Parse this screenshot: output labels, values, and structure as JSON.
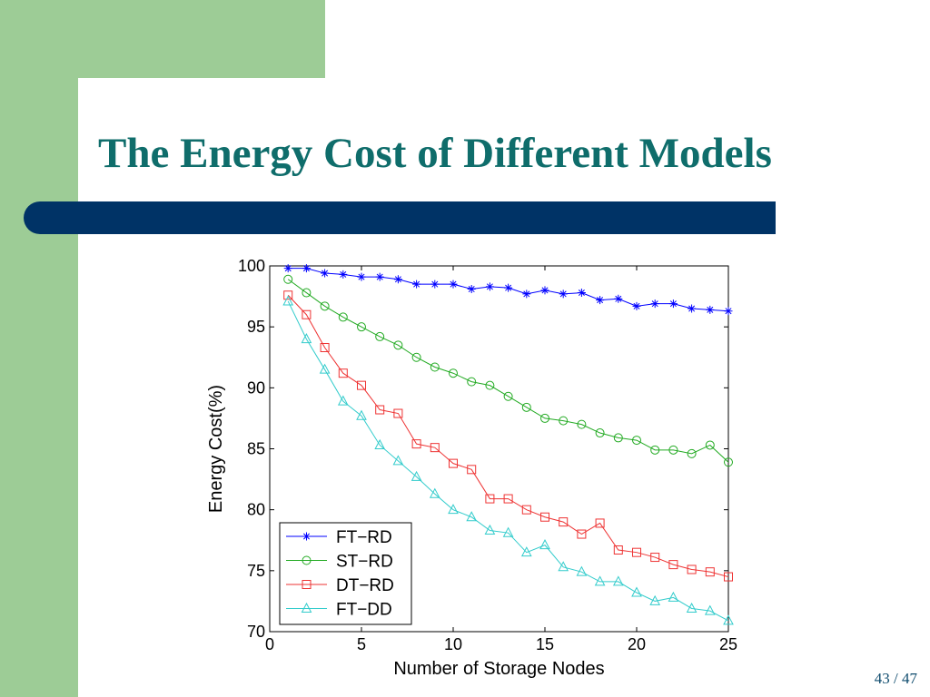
{
  "slide": {
    "title": "The Energy Cost of Different Models",
    "page_current": "43",
    "page_total": "47",
    "page_label": "43 / 47"
  },
  "colors": {
    "title": "#0f6d6b",
    "bar": "#003366",
    "sidebar": "#9dcc96"
  },
  "chart_data": {
    "type": "line",
    "xlabel": "Number of Storage Nodes",
    "ylabel": "Energy Cost(%)",
    "xlim": [
      0,
      25
    ],
    "ylim": [
      70,
      100
    ],
    "xticks": [
      0,
      5,
      10,
      15,
      20,
      25
    ],
    "yticks": [
      70,
      75,
      80,
      85,
      90,
      95,
      100
    ],
    "grid": false,
    "legend_position": "bottom-left",
    "x": [
      1,
      2,
      3,
      4,
      5,
      6,
      7,
      8,
      9,
      10,
      11,
      12,
      13,
      14,
      15,
      16,
      17,
      18,
      19,
      20,
      21,
      22,
      23,
      24,
      25
    ],
    "series": [
      {
        "name": "FT−RD",
        "color": "#0000ff",
        "marker": "star",
        "values": [
          99.8,
          99.8,
          99.4,
          99.3,
          99.1,
          99.1,
          98.9,
          98.5,
          98.5,
          98.5,
          98.1,
          98.3,
          98.2,
          97.7,
          98.0,
          97.7,
          97.8,
          97.2,
          97.3,
          96.7,
          96.9,
          96.9,
          96.5,
          96.4,
          96.3
        ]
      },
      {
        "name": "ST−RD",
        "color": "#22aa22",
        "marker": "circle",
        "values": [
          98.9,
          97.8,
          96.7,
          95.8,
          95.0,
          94.2,
          93.5,
          92.5,
          91.7,
          91.2,
          90.5,
          90.2,
          89.3,
          88.4,
          87.5,
          87.3,
          87.0,
          86.3,
          85.9,
          85.7,
          84.9,
          84.9,
          84.6,
          85.3,
          83.9
        ]
      },
      {
        "name": "DT−RD",
        "color": "#ee3333",
        "marker": "square",
        "values": [
          97.6,
          96.0,
          93.3,
          91.2,
          90.2,
          88.2,
          87.9,
          85.4,
          85.1,
          83.8,
          83.3,
          80.9,
          80.9,
          80.0,
          79.4,
          79.0,
          78.0,
          78.9,
          76.7,
          76.5,
          76.1,
          75.5,
          75.1,
          74.9,
          74.5
        ]
      },
      {
        "name": "FT−DD",
        "color": "#33cccc",
        "marker": "triangle",
        "values": [
          97.1,
          94.0,
          91.5,
          88.9,
          87.7,
          85.3,
          84.0,
          82.7,
          81.3,
          80.0,
          79.4,
          78.3,
          78.1,
          76.5,
          77.1,
          75.3,
          74.9,
          74.1,
          74.1,
          73.2,
          72.5,
          72.8,
          71.9,
          71.7,
          70.9
        ]
      }
    ]
  }
}
